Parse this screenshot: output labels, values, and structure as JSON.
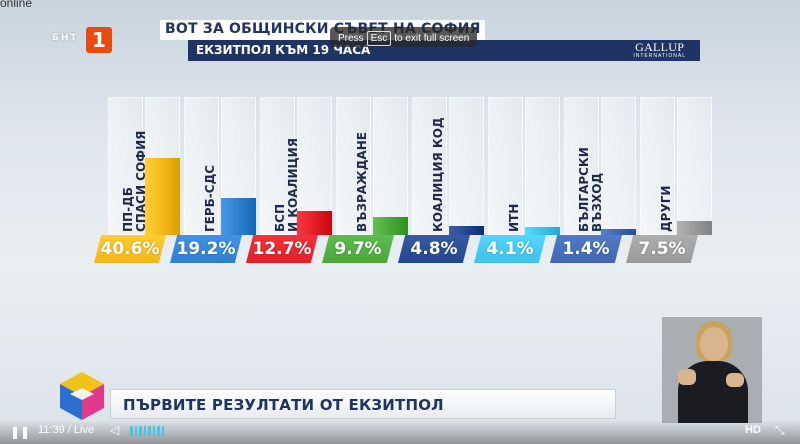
{
  "overlay": {
    "online_text": "online"
  },
  "broadcaster": {
    "logo_letters": "БНТ",
    "channel": "1"
  },
  "header": {
    "title": "ВОТ ЗА ОБЩИНСКИ СЪВЕТ НА СОФИЯ",
    "subtitle": "ЕКЗИТПОЛ КЪМ 19 ЧАСА",
    "pollster": "GALLUP",
    "pollster_sub": "INTERNATIONAL"
  },
  "fullscreen_hint": {
    "press": "Press",
    "key": "Esc",
    "rest": "to exit full screen"
  },
  "chart_data": {
    "type": "bar",
    "title": "ВОТ ЗА ОБЩИНСКИ СЪВЕТ НА СОФИЯ",
    "subtitle": "ЕКЗИТПОЛ КЪМ 19 ЧАСА",
    "categories": [
      "ПП-ДБ\nСПАСИ СОФИЯ",
      "ГЕРБ-СДС",
      "БСП\nИ КОАЛИЦИЯ",
      "ВЪЗРАЖДАНЕ",
      "КОАЛИЦИЯ КОД",
      "ИТН",
      "БЪЛГАРСКИ\nВЪЗХОД",
      "ДРУГИ"
    ],
    "values": [
      40.6,
      19.2,
      12.7,
      9.7,
      4.8,
      4.1,
      1.4,
      7.5
    ],
    "value_labels": [
      "40.6%",
      "19.2%",
      "12.7%",
      "9.7%",
      "4.8%",
      "4.1%",
      "1.4%",
      "7.5%"
    ],
    "colors": [
      "#f2b81a",
      "#2f7fd0",
      "#e21e26",
      "#4aa83a",
      "#22468f",
      "#3ec1ea",
      "#3f67b1",
      "#9a9a9a"
    ],
    "unit": "%",
    "ylim": [
      0,
      100
    ]
  },
  "ticker": {
    "text": "ПЪРВИТЕ РЕЗУЛТАТИ ОТ ЕКЗИТПОЛ"
  },
  "player": {
    "time": "11:39",
    "live": "Live",
    "quality": "HD"
  }
}
